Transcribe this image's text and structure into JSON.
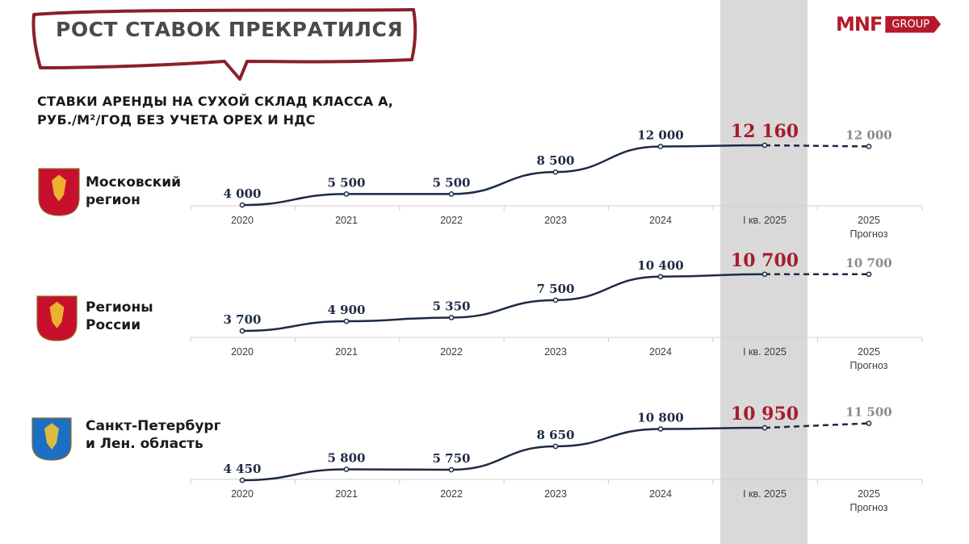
{
  "title": "РОСТ СТАВОК ПРЕКРАТИЛСЯ",
  "subtitle_line1": "СТАВКИ АРЕНДЫ НА СУХОЙ СКЛАД КЛАССА А,",
  "subtitle_line2": "РУБ./М²/ГОД БЕЗ УЧЕТА OPEX И НДС",
  "logo": {
    "main": "MNF",
    "group": "GROUP"
  },
  "colors": {
    "accent": "#a61c2e",
    "line": "#1c2a44",
    "forecast": "#8a8a8a",
    "highlight": "#d9d9d9"
  },
  "chart_data": [
    {
      "type": "line",
      "region": "Московский регион",
      "region_lines": [
        "Московский",
        "регион"
      ],
      "emblem": "moscow-coat-of-arms-icon",
      "categories": [
        "2020",
        "2021",
        "2022",
        "2023",
        "2024",
        "I кв. 2025",
        "2025"
      ],
      "category_sublabels": [
        "",
        "",
        "",
        "",
        "",
        "",
        "Прогноз"
      ],
      "values": [
        4000,
        5500,
        5500,
        8500,
        12000,
        12160,
        12000
      ],
      "labels": [
        "4 000",
        "5 500",
        "5 500",
        "8 500",
        "12 000",
        "12 160",
        "12 000"
      ],
      "highlight_index": 5,
      "forecast_index": 6
    },
    {
      "type": "line",
      "region": "Регионы России",
      "region_lines": [
        "Регионы",
        "России"
      ],
      "emblem": "russia-coat-of-arms-icon",
      "categories": [
        "2020",
        "2021",
        "2022",
        "2023",
        "2024",
        "I кв. 2025",
        "2025"
      ],
      "category_sublabels": [
        "",
        "",
        "",
        "",
        "",
        "",
        "Прогноз"
      ],
      "values": [
        3700,
        4900,
        5350,
        7500,
        10400,
        10700,
        10700
      ],
      "labels": [
        "3 700",
        "4 900",
        "5 350",
        "7 500",
        "10 400",
        "10 700",
        "10 700"
      ],
      "highlight_index": 5,
      "forecast_index": 6
    },
    {
      "type": "line",
      "region": "Санкт-Петербург и Лен. область",
      "region_lines": [
        "Санкт-Петербург",
        "и Лен. область"
      ],
      "emblem": "spb-coat-of-arms-icon",
      "categories": [
        "2020",
        "2021",
        "2022",
        "2023",
        "2024",
        "I кв. 2025",
        "2025"
      ],
      "category_sublabels": [
        "",
        "",
        "",
        "",
        "",
        "",
        "Прогноз"
      ],
      "values": [
        4450,
        5800,
        5750,
        8650,
        10800,
        10950,
        11500
      ],
      "labels": [
        "4 450",
        "5 800",
        "5 750",
        "8 650",
        "10 800",
        "10 950",
        "11 500"
      ],
      "highlight_index": 5,
      "forecast_index": 6
    }
  ]
}
